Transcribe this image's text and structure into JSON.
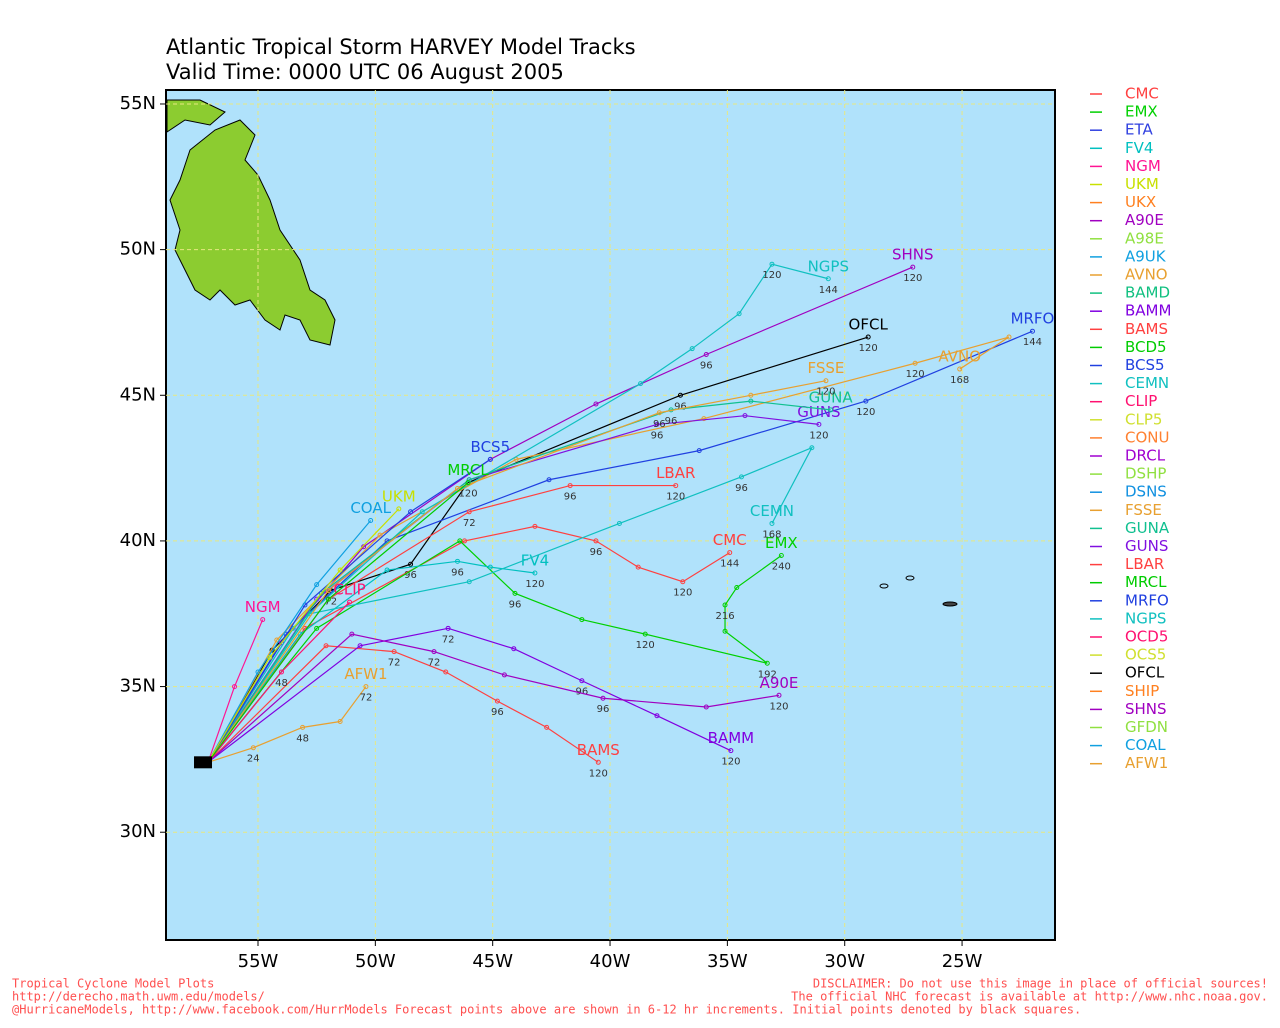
{
  "map": {
    "title": [
      "Atlantic Tropical Storm HARVEY Model Tracks",
      "Valid Time: 0000 UTC 06 August 2005"
    ],
    "xlim": [
      -58.92,
      -21.04
    ],
    "ylim": [
      26.3,
      55.48
    ],
    "xticks": [
      {
        "value": -55,
        "label": "55W"
      },
      {
        "value": -50,
        "label": "50W"
      },
      {
        "value": -45,
        "label": "45W"
      },
      {
        "value": -40,
        "label": "40W"
      },
      {
        "value": -35,
        "label": "35W"
      },
      {
        "value": -30,
        "label": "30W"
      },
      {
        "value": -25,
        "label": "25W"
      }
    ],
    "yticks": [
      {
        "value": 30,
        "label": "30N"
      },
      {
        "value": 35,
        "label": "35N"
      },
      {
        "value": 40,
        "label": "40N"
      },
      {
        "value": 45,
        "label": "45N"
      },
      {
        "value": 50,
        "label": "50N"
      },
      {
        "value": 55,
        "label": "55N"
      }
    ],
    "grid": true,
    "legend": [
      {
        "name": "CMC",
        "color": "#ff4040"
      },
      {
        "name": "EMX",
        "color": "#00d000"
      },
      {
        "name": "ETA",
        "color": "#3040e0"
      },
      {
        "name": "FV4",
        "color": "#00c0c0"
      },
      {
        "name": "NGM",
        "color": "#ff1493"
      },
      {
        "name": "UKM",
        "color": "#c8e000"
      },
      {
        "name": "UKX",
        "color": "#ff8020"
      },
      {
        "name": "A90E",
        "color": "#a000c0"
      },
      {
        "name": "A98E",
        "color": "#90e040"
      },
      {
        "name": "A9UK",
        "color": "#10a0e0"
      },
      {
        "name": "AVNO",
        "color": "#e8a030"
      },
      {
        "name": "BAMD",
        "color": "#10c080"
      },
      {
        "name": "BAMM",
        "color": "#8000e0"
      },
      {
        "name": "BAMS",
        "color": "#ff4040"
      },
      {
        "name": "BCD5",
        "color": "#00cc00"
      },
      {
        "name": "BCS5",
        "color": "#2040e0"
      },
      {
        "name": "CEMN",
        "color": "#10c0c0"
      },
      {
        "name": "CLIP",
        "color": "#ff1070"
      },
      {
        "name": "CLP5",
        "color": "#d0e030"
      },
      {
        "name": "CONU",
        "color": "#ff8030"
      },
      {
        "name": "DRCL",
        "color": "#a000d0"
      },
      {
        "name": "DSHP",
        "color": "#90e040"
      },
      {
        "name": "DSNS",
        "color": "#1090e0"
      },
      {
        "name": "FSSE",
        "color": "#e8a030"
      },
      {
        "name": "GUNA",
        "color": "#10c090"
      },
      {
        "name": "GUNS",
        "color": "#8010e0"
      },
      {
        "name": "LBAR",
        "color": "#ff4040"
      },
      {
        "name": "MRCL",
        "color": "#00cc00"
      },
      {
        "name": "MRFO",
        "color": "#2040e0"
      },
      {
        "name": "NGPS",
        "color": "#10c0c0"
      },
      {
        "name": "OCD5",
        "color": "#ff1070"
      },
      {
        "name": "OCS5",
        "color": "#d0e030"
      },
      {
        "name": "OFCL",
        "color": "#000000"
      },
      {
        "name": "SHIP",
        "color": "#ff8020"
      },
      {
        "name": "SHNS",
        "color": "#a000c0"
      },
      {
        "name": "GFDN",
        "color": "#90e040"
      },
      {
        "name": "COAL",
        "color": "#10a0e0"
      },
      {
        "name": "AFW1",
        "color": "#e8a030"
      }
    ],
    "tracks": [
      {
        "name": "OFCL",
        "lon": [
          -57.13,
          -54.4,
          -51.9,
          -48.5,
          -46.05,
          -37.0,
          -29.0
        ],
        "lat": [
          32.4,
          36.25,
          38.3,
          39.2,
          42.0,
          45.0,
          47.0
        ],
        "hours": [
          null,
          null,
          72,
          96,
          120,
          96,
          120
        ]
      },
      {
        "name": "SHNS",
        "lon": [
          -57.13,
          -54.0,
          -50.5,
          -45.1,
          -40.6,
          -35.9,
          -27.1
        ],
        "lat": [
          32.4,
          36.5,
          39.8,
          42.8,
          44.7,
          46.4,
          49.4
        ],
        "hours": [
          null,
          null,
          null,
          null,
          null,
          96,
          120
        ]
      },
      {
        "name": "MRFO",
        "lon": [
          -57.13,
          -53.8,
          -49.5,
          -42.6,
          -36.2,
          -29.1,
          -22.0
        ],
        "lat": [
          32.4,
          36.8,
          40.0,
          42.1,
          43.1,
          44.8,
          47.2
        ],
        "hours": [
          null,
          null,
          null,
          null,
          null,
          120,
          144
        ]
      },
      {
        "name": "AVNO",
        "lon": [
          -57.13,
          -54.2,
          -49.8,
          -44.0,
          -36.0,
          -27.0,
          -23.0,
          -25.1
        ],
        "lat": [
          32.4,
          36.6,
          40.2,
          42.8,
          44.2,
          46.1,
          47.0,
          45.9
        ],
        "hours": [
          null,
          null,
          null,
          null,
          null,
          120,
          null,
          168
        ]
      },
      {
        "name": "NGPS",
        "lon": [
          -57.13,
          -53.5,
          -48.0,
          -38.7,
          -36.5,
          -34.5,
          -33.1,
          -30.7
        ],
        "lat": [
          32.4,
          37.0,
          41.0,
          45.4,
          46.6,
          47.8,
          49.5,
          49.0
        ],
        "hours": [
          null,
          null,
          null,
          null,
          null,
          null,
          120,
          144
        ]
      },
      {
        "name": "CMC",
        "lon": [
          -57.13,
          -53.0,
          -46.2,
          -43.2,
          -40.6,
          -38.8,
          -36.9,
          -34.9
        ],
        "lat": [
          32.4,
          37.0,
          40.0,
          40.5,
          40.0,
          39.1,
          38.6,
          39.6
        ],
        "hours": [
          null,
          null,
          null,
          null,
          96,
          null,
          120,
          144
        ]
      },
      {
        "name": "EMX",
        "lon": [
          -57.13,
          -52.5,
          -46.4,
          -44.05,
          -41.2,
          -38.5,
          -33.3,
          -35.1,
          -35.1,
          -34.6,
          -32.7
        ],
        "lat": [
          32.4,
          37.0,
          40.0,
          38.2,
          37.3,
          36.8,
          35.8,
          36.9,
          37.8,
          38.4,
          39.5
        ],
        "hours": [
          null,
          null,
          null,
          96,
          null,
          120,
          192,
          null,
          216,
          null,
          240
        ]
      },
      {
        "name": "BAMS",
        "lon": [
          -57.13,
          -52.1,
          -49.2,
          -47.0,
          -44.8,
          -42.7,
          -40.5
        ],
        "lat": [
          32.4,
          36.4,
          36.2,
          35.5,
          34.5,
          33.6,
          32.4
        ],
        "hours": [
          null,
          null,
          72,
          null,
          96,
          null,
          120
        ]
      },
      {
        "name": "BAMM",
        "lon": [
          -57.13,
          -50.65,
          -46.9,
          -44.1,
          -41.2,
          -38.0,
          -34.85
        ],
        "lat": [
          32.4,
          36.4,
          37.0,
          36.3,
          35.2,
          34.0,
          32.8
        ],
        "hours": [
          null,
          null,
          72,
          null,
          96,
          null,
          120
        ]
      },
      {
        "name": "A90E",
        "lon": [
          -57.13,
          -51.0,
          -47.5,
          -44.5,
          -40.3,
          -35.9,
          -32.8
        ],
        "lat": [
          32.4,
          36.8,
          36.2,
          35.4,
          34.6,
          34.3,
          34.7
        ],
        "hours": [
          null,
          null,
          72,
          null,
          96,
          null,
          120
        ]
      },
      {
        "name": "AFW1",
        "lon": [
          -57.13,
          -55.2,
          -53.1,
          -51.5,
          -50.4
        ],
        "lat": [
          32.4,
          32.9,
          33.6,
          33.8,
          35.0
        ],
        "hours": [
          null,
          24,
          48,
          null,
          72
        ]
      },
      {
        "name": "FV4",
        "lon": [
          -57.13,
          -53.2,
          -49.5,
          -46.5,
          -45.1,
          -43.2
        ],
        "lat": [
          32.4,
          36.8,
          39.0,
          39.3,
          39.1,
          38.9
        ],
        "hours": [
          null,
          null,
          null,
          96,
          null,
          120
        ]
      },
      {
        "name": "CEMN",
        "lon": [
          -57.13,
          -52.8,
          -46.0,
          -39.6,
          -34.4,
          -31.4,
          -33.1
        ],
        "lat": [
          32.4,
          37.5,
          38.6,
          40.6,
          42.2,
          43.2,
          40.6
        ],
        "hours": [
          null,
          null,
          null,
          null,
          96,
          null,
          168
        ]
      },
      {
        "name": "LBAR",
        "lon": [
          -57.13,
          -52.0,
          -46.0,
          -41.7,
          -37.2
        ],
        "lat": [
          32.4,
          38.0,
          41.0,
          41.9,
          41.9
        ],
        "hours": [
          null,
          null,
          72,
          96,
          120
        ]
      },
      {
        "name": "GUNS",
        "lon": [
          -57.13,
          -52.5,
          -46.0,
          -38.0,
          -34.25,
          -31.1
        ],
        "lat": [
          32.4,
          38.0,
          42.1,
          44.0,
          44.3,
          44.0
        ],
        "hours": [
          null,
          null,
          null,
          96,
          null,
          120
        ]
      },
      {
        "name": "GUNA",
        "lon": [
          -57.13,
          -52.3,
          -46.0,
          -37.4,
          -34.0,
          -30.6
        ],
        "lat": [
          32.4,
          38.2,
          42.1,
          44.5,
          44.8,
          44.5
        ],
        "hours": [
          null,
          null,
          null,
          96,
          null,
          null
        ]
      },
      {
        "name": "FSSE",
        "lon": [
          -57.13,
          -52.0,
          -46.5,
          -37.9,
          -34.0,
          -30.8
        ],
        "lat": [
          32.4,
          38.3,
          41.8,
          44.4,
          45.0,
          45.5
        ],
        "hours": [
          null,
          null,
          null,
          96,
          null,
          120
        ]
      },
      {
        "name": "BCS5",
        "lon": [
          -57.13,
          -53.0,
          -48.5,
          -45.1
        ],
        "lat": [
          32.4,
          37.8,
          41.0,
          42.8
        ],
        "hours": [
          null,
          null,
          null,
          null
        ]
      },
      {
        "name": "COAL",
        "lon": [
          -57.13,
          -55.0,
          -52.5,
          -50.2
        ],
        "lat": [
          32.4,
          35.5,
          38.5,
          40.7
        ],
        "hours": [
          null,
          null,
          null,
          null
        ]
      },
      {
        "name": "UKM",
        "lon": [
          -57.13,
          -54.5,
          -51.5,
          -49.0
        ],
        "lat": [
          32.4,
          36.0,
          39.0,
          41.1
        ],
        "hours": [
          null,
          null,
          null,
          null
        ]
      },
      {
        "name": "NGM",
        "lon": [
          -57.13,
          -56.0,
          -54.8
        ],
        "lat": [
          32.4,
          35.0,
          37.3
        ],
        "hours": [
          null,
          null,
          null
        ]
      },
      {
        "name": "CLIP",
        "lon": [
          -57.13,
          -54.0,
          -51.1
        ],
        "lat": [
          32.4,
          35.5,
          37.9
        ],
        "hours": [
          null,
          48,
          null
        ]
      },
      {
        "name": "MRCL",
        "lon": [
          -57.13,
          -52.0,
          -46.05
        ],
        "lat": [
          32.4,
          38.0,
          42.0
        ],
        "hours": [
          null,
          null,
          null
        ]
      }
    ],
    "footer_left": [
      "Tropical Cyclone Model Plots",
      "http://derecho.math.uwm.edu/models/",
      "@HurricaneModels, http://www.facebook.com/HurrModels  Forecast points above are shown in 6-12 hr increments. Initial points denoted by black squares."
    ],
    "footer_right": [
      "DISCLAIMER: Do not use this image in place of official sources!",
      "The official NHC forecast is available at http://www.nhc.noaa.gov."
    ]
  }
}
